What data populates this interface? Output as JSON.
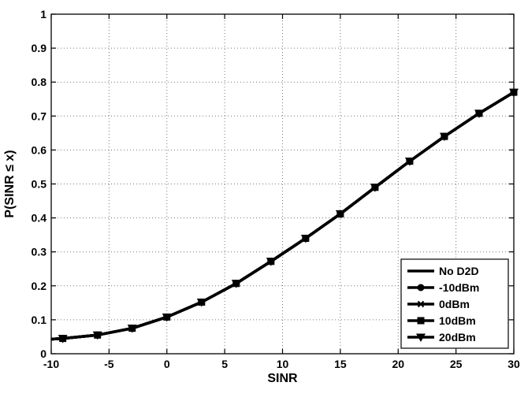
{
  "chart_data": {
    "type": "line",
    "xlabel": "SINR",
    "ylabel": "P(SINR ≤ x)",
    "xlim": [
      -10,
      30
    ],
    "ylim": [
      0,
      1
    ],
    "xticks": [
      -10,
      -5,
      0,
      5,
      10,
      15,
      20,
      25,
      30
    ],
    "yticks": [
      0,
      0.1,
      0.2,
      0.3,
      0.4,
      0.5,
      0.6,
      0.7,
      0.8,
      0.9,
      1
    ],
    "xtick_labels": [
      "-10",
      "-5",
      "0",
      "5",
      "10",
      "15",
      "20",
      "25",
      "30"
    ],
    "ytick_labels": [
      "0",
      "0.1",
      "0.2",
      "0.3",
      "0.4",
      "0.5",
      "0.6",
      "0.7",
      "0.8",
      "0.9",
      "1"
    ],
    "grid": true,
    "legend_position": "bottom-right",
    "x": [
      -10,
      -9,
      -6,
      -3,
      0,
      3,
      6,
      9,
      12,
      15,
      18,
      21,
      24,
      27,
      30
    ],
    "series": [
      {
        "name": "No D2D",
        "marker": "none",
        "color": "#000000",
        "values": [
          0.043,
          0.045,
          0.055,
          0.075,
          0.108,
          0.152,
          0.207,
          0.272,
          0.34,
          0.412,
          0.49,
          0.567,
          0.64,
          0.708,
          0.77
        ]
      },
      {
        "name": "-10dBm",
        "marker": "circle",
        "color": "#000000",
        "values": [
          0.043,
          0.045,
          0.055,
          0.075,
          0.108,
          0.152,
          0.207,
          0.272,
          0.34,
          0.412,
          0.49,
          0.567,
          0.64,
          0.708,
          0.77
        ]
      },
      {
        "name": "0dBm",
        "marker": "x",
        "color": "#000000",
        "values": [
          0.043,
          0.045,
          0.055,
          0.075,
          0.108,
          0.152,
          0.207,
          0.272,
          0.34,
          0.412,
          0.49,
          0.567,
          0.64,
          0.708,
          0.77
        ]
      },
      {
        "name": "10dBm",
        "marker": "square",
        "color": "#000000",
        "values": [
          0.043,
          0.045,
          0.055,
          0.075,
          0.108,
          0.152,
          0.207,
          0.272,
          0.34,
          0.412,
          0.49,
          0.567,
          0.64,
          0.708,
          0.77
        ]
      },
      {
        "name": "20dBm",
        "marker": "triangle-down",
        "color": "#000000",
        "values": [
          0.043,
          0.045,
          0.055,
          0.075,
          0.108,
          0.152,
          0.207,
          0.272,
          0.34,
          0.412,
          0.49,
          0.567,
          0.64,
          0.708,
          0.77
        ]
      }
    ]
  }
}
